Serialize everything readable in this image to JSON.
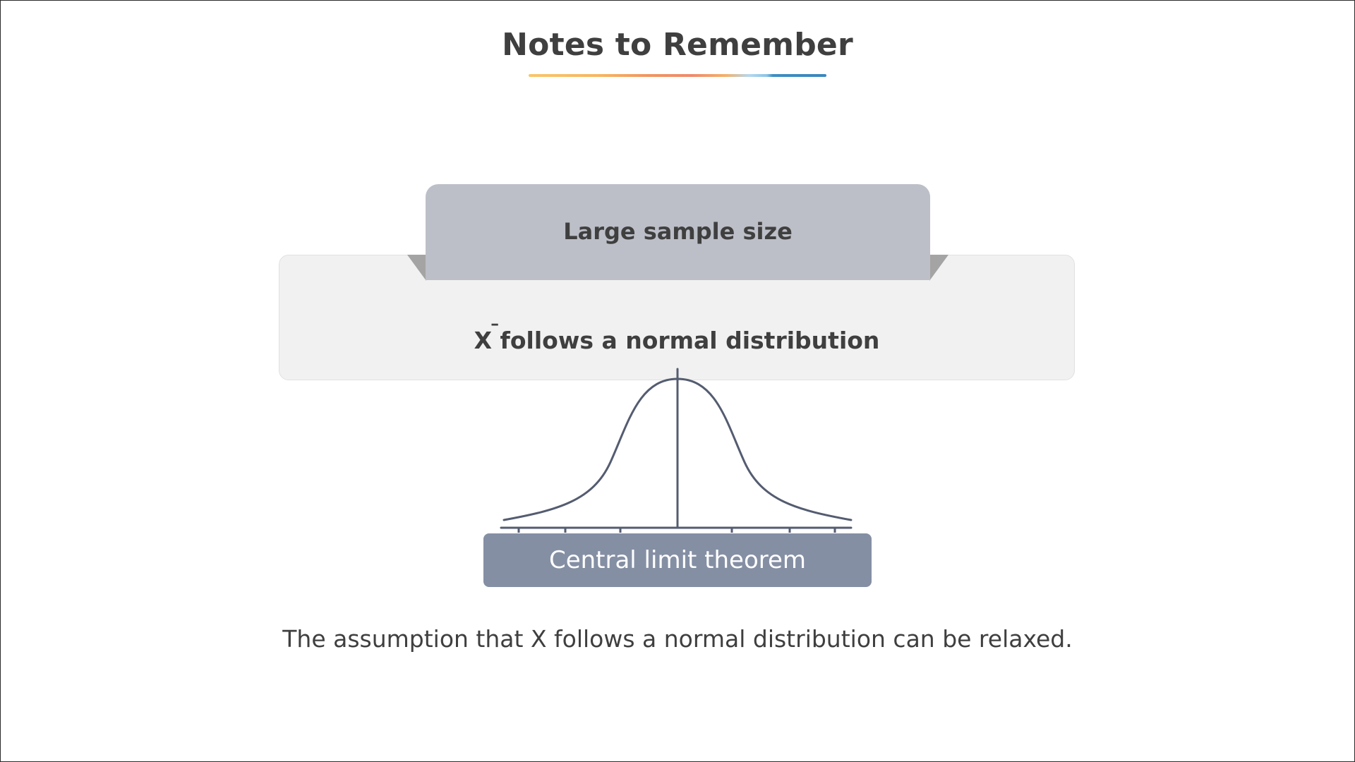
{
  "slide": {
    "title": "Notes to Remember",
    "tab_label": "Large sample size",
    "statement_symbol": "X",
    "statement_bar": "¯",
    "statement_text": " follows a normal distribution",
    "theorem_label": "Central limit theorem",
    "caption": "The assumption that X follows a normal distribution can be relaxed."
  },
  "colors": {
    "title_text": "#3f3f3f",
    "tab_fill": "#bcbfc7",
    "outer_box_fill": "#f1f1f1",
    "theorem_fill": "#858fa4",
    "curve_stroke": "#545c70",
    "underline_gradient": [
      "#f8c66a",
      "#f19560",
      "#ef8a6c",
      "#8cc4e6",
      "#3a87bd"
    ]
  },
  "icons": {
    "curve": "normal-distribution-curve-icon"
  }
}
